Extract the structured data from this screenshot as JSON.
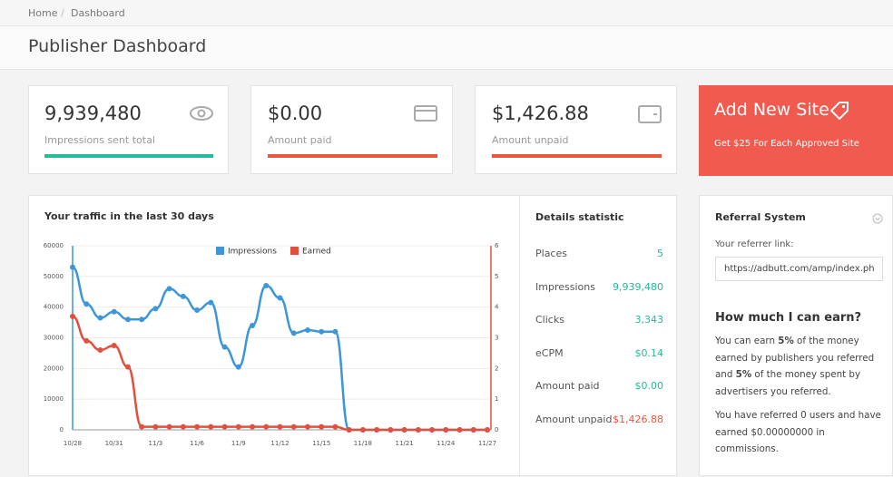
{
  "breadcrumb": {
    "items": [
      "Home",
      "Dashboard"
    ],
    "separator": "/"
  },
  "header": {
    "title": "Publisher Dashboard"
  },
  "stats": [
    {
      "value": "9,939,480",
      "label": "Impressions sent total"
    },
    {
      "value": "$0.00",
      "label": "Amount paid"
    },
    {
      "value": "$1,426.88",
      "label": "Amount unpaid"
    }
  ],
  "promo": {
    "title": "Add New Site",
    "subtitle": "Get $25 For Each Approved Site"
  },
  "details": {
    "title": "Details statistic",
    "rows": [
      [
        "Places",
        "5"
      ],
      [
        "Impressions",
        "9,939,480"
      ],
      [
        "Clicks",
        "3,343"
      ],
      [
        "eCPM",
        "$0.14"
      ],
      [
        "Amount paid",
        "$0.00"
      ],
      [
        "Amount unpaid",
        "$1,426.88"
      ]
    ]
  },
  "referral": {
    "title": "Referral System",
    "link_label": "Your referrer link:",
    "link": "https://adbutt.com/amp/index.ph",
    "earn_title": "How much I can earn?",
    "paragraph1": [
      "You can earn ",
      "5%",
      " of the money earned by publishers you referred and ",
      "5%",
      " of the money spent by advertisers you referred."
    ],
    "paragraph2": "You have referred 0 users and have earned $0.00000000 in commissions."
  },
  "chart_data": {
    "type": "line",
    "title": "Your traffic in the last 30 days",
    "categories": [
      "10/28",
      null,
      null,
      "10/31",
      null,
      null,
      "11/3",
      null,
      null,
      "11/6",
      null,
      null,
      "11/9",
      null,
      null,
      "11/12",
      null,
      null,
      "11/15",
      null,
      null,
      "11/18",
      null,
      null,
      "11/21",
      null,
      null,
      "11/24",
      null,
      null,
      "11/27"
    ],
    "series": [
      {
        "name": "Impressions",
        "color": "#3d96d8",
        "values": [
          53000,
          41000,
          36500,
          38500,
          36000,
          36000,
          39500,
          46000,
          43500,
          39000,
          41500,
          27000,
          20500,
          34000,
          47000,
          43000,
          31500,
          32500,
          32000,
          32000,
          0,
          0,
          0,
          0,
          0,
          0,
          0,
          0,
          0,
          0,
          0
        ]
      },
      {
        "name": "Earned",
        "color": "#e0503f",
        "axis": "y2",
        "values": [
          3.7,
          2.9,
          2.6,
          2.75,
          2.05,
          0.1,
          0.1,
          0.1,
          0.1,
          0.1,
          0.1,
          0.1,
          0.1,
          0.1,
          0.1,
          0.1,
          0.1,
          0.1,
          0.1,
          0.1,
          0,
          0,
          0,
          0,
          0,
          0,
          0,
          0,
          0,
          0,
          0
        ]
      }
    ],
    "ylim": [
      0,
      60000
    ],
    "yticks": [
      0,
      10000,
      20000,
      30000,
      40000,
      50000,
      60000
    ],
    "y2lim": [
      0,
      6
    ],
    "y2ticks": [
      0,
      1,
      2,
      3,
      4,
      5,
      6
    ],
    "grid": true,
    "legend": "top"
  }
}
